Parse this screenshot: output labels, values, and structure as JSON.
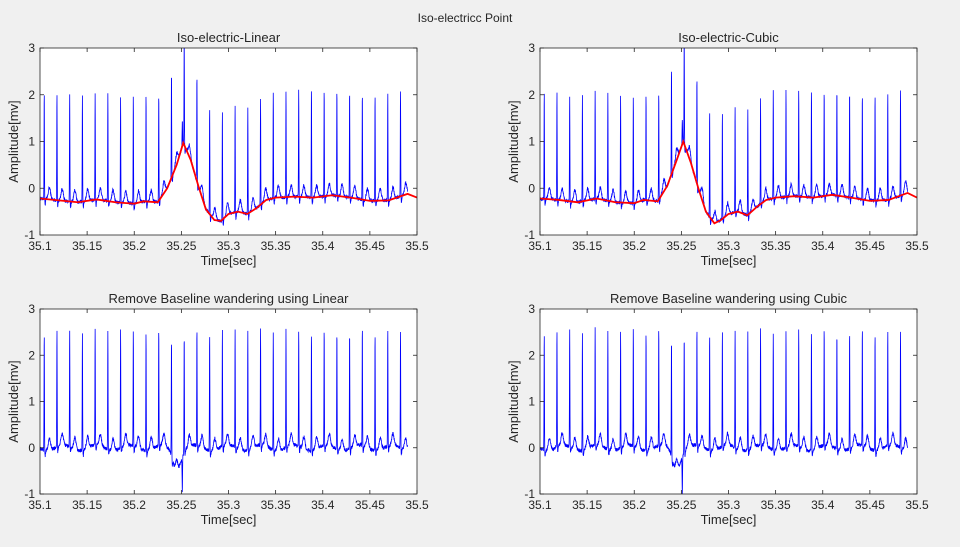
{
  "figure": {
    "title": "Iso-electricc Point",
    "colors": {
      "signal": "#0000ff",
      "baseline": "#ff0000",
      "axes": "#262626",
      "plot_bg": "#ffffff",
      "figure_bg": "#f0f0f0"
    }
  },
  "chart_data": [
    {
      "type": "line",
      "title": "Iso-electric-Linear",
      "xlabel": "Time[sec]",
      "ylabel": "Amplitude[mv]",
      "xlim": [
        35.1,
        35.5
      ],
      "ylim": [
        -1,
        3
      ],
      "xticks": [
        "35.1",
        "35.15",
        "35.2",
        "35.25",
        "35.3",
        "35.35",
        "35.4",
        "35.45",
        "35.5"
      ],
      "yticks": [
        "-1",
        "0",
        "1",
        "2",
        "3"
      ],
      "grid": false,
      "signal": {
        "baseline_offset": -0.2,
        "r_peak": 2.3,
        "spike_peak": 2.85,
        "spike_time": 35.251
      },
      "series": [
        {
          "color": "#ff0000",
          "x": [
            35.1,
            35.12,
            35.14,
            35.16,
            35.18,
            35.2,
            35.21,
            35.225,
            35.235,
            35.245,
            35.252,
            35.26,
            35.268,
            35.276,
            35.285,
            35.292,
            35.3,
            35.31,
            35.32,
            35.33,
            35.34,
            35.35,
            35.37,
            35.39,
            35.41,
            35.43,
            35.45,
            35.47,
            35.49,
            35.5
          ],
          "y": [
            -0.22,
            -0.26,
            -0.3,
            -0.24,
            -0.3,
            -0.33,
            -0.28,
            -0.3,
            0.0,
            0.5,
            0.97,
            0.6,
            0.05,
            -0.45,
            -0.68,
            -0.7,
            -0.55,
            -0.5,
            -0.55,
            -0.42,
            -0.25,
            -0.2,
            -0.18,
            -0.2,
            -0.15,
            -0.2,
            -0.27,
            -0.26,
            -0.12,
            -0.2
          ]
        }
      ]
    },
    {
      "type": "line",
      "title": "Iso-electric-Cubic",
      "xlabel": "Time[sec]",
      "ylabel": "Amplitude[mv]",
      "xlim": [
        35.1,
        35.5
      ],
      "ylim": [
        -1,
        3
      ],
      "xticks": [
        "35.1",
        "35.15",
        "35.2",
        "35.25",
        "35.3",
        "35.35",
        "35.4",
        "35.45",
        "35.5"
      ],
      "yticks": [
        "-1",
        "0",
        "1",
        "2",
        "3"
      ],
      "grid": false,
      "signal": {
        "baseline_offset": -0.2,
        "r_peak": 2.3,
        "spike_peak": 2.85,
        "spike_time": 35.251
      },
      "series": [
        {
          "color": "#ff0000",
          "x": [
            35.1,
            35.12,
            35.14,
            35.16,
            35.18,
            35.2,
            35.21,
            35.225,
            35.235,
            35.245,
            35.252,
            35.26,
            35.268,
            35.276,
            35.285,
            35.292,
            35.3,
            35.31,
            35.32,
            35.33,
            35.34,
            35.35,
            35.37,
            35.39,
            35.41,
            35.43,
            35.45,
            35.47,
            35.49,
            35.5
          ],
          "y": [
            -0.22,
            -0.25,
            -0.3,
            -0.22,
            -0.3,
            -0.32,
            -0.25,
            -0.28,
            0.05,
            0.6,
            1.0,
            0.55,
            0.0,
            -0.5,
            -0.75,
            -0.68,
            -0.55,
            -0.5,
            -0.58,
            -0.4,
            -0.25,
            -0.2,
            -0.17,
            -0.2,
            -0.14,
            -0.2,
            -0.27,
            -0.25,
            -0.1,
            -0.2
          ]
        }
      ]
    },
    {
      "type": "line",
      "title": "Remove Baseline wandering using Linear",
      "xlabel": "Time[sec]",
      "ylabel": "Amplitude[mv]",
      "xlim": [
        35.1,
        35.5
      ],
      "ylim": [
        -1,
        3
      ],
      "xticks": [
        "35.1",
        "35.15",
        "35.2",
        "35.25",
        "35.3",
        "35.35",
        "35.4",
        "35.45",
        "35.5"
      ],
      "yticks": [
        "-1",
        "0",
        "1",
        "2",
        "3"
      ],
      "grid": false,
      "signal": {
        "baseline_offset": 0.0,
        "r_peak": 2.55,
        "spike_peak": 1.8,
        "spike_time": 35.251
      },
      "series": []
    },
    {
      "type": "line",
      "title": "Remove Baseline wandering using Cubic",
      "xlabel": "Time[sec]",
      "ylabel": "Amplitude[mv]",
      "xlim": [
        35.1,
        35.5
      ],
      "ylim": [
        -1,
        3
      ],
      "xticks": [
        "35.1",
        "35.15",
        "35.2",
        "35.25",
        "35.3",
        "35.35",
        "35.4",
        "35.45",
        "35.5"
      ],
      "yticks": [
        "-1",
        "0",
        "1",
        "2",
        "3"
      ],
      "grid": false,
      "signal": {
        "baseline_offset": 0.0,
        "r_peak": 2.55,
        "spike_peak": 1.75,
        "spike_time": 35.251
      },
      "series": []
    }
  ]
}
